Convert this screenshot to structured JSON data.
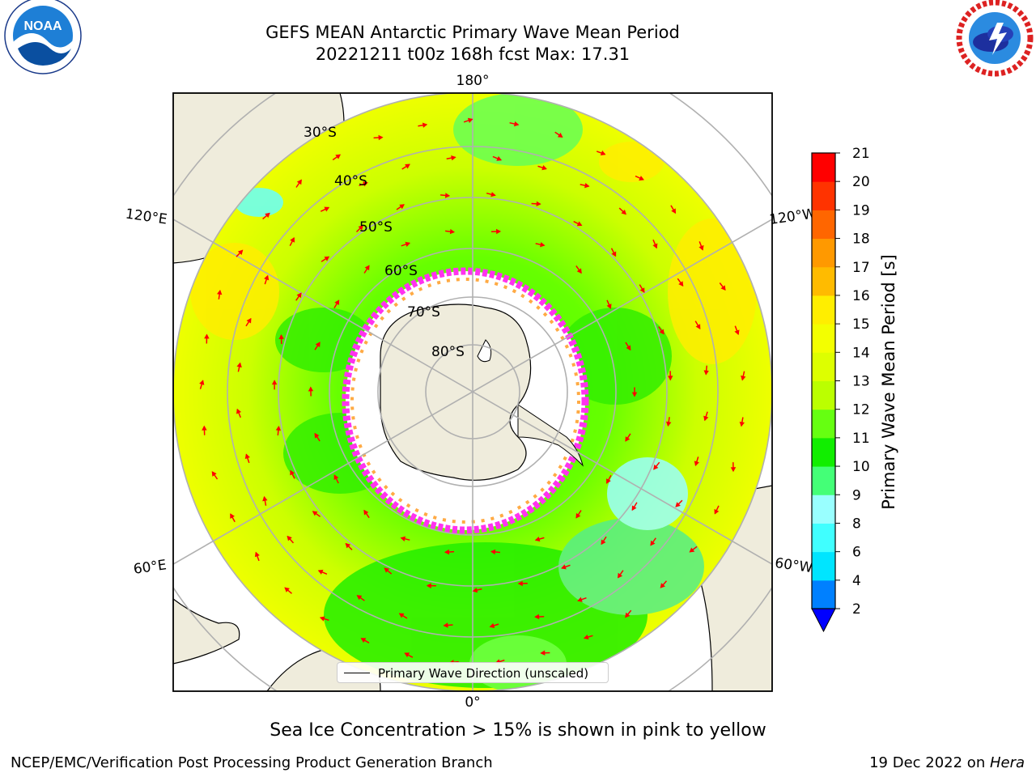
{
  "header": {
    "title_line1": "GEFS MEAN Antarctic Primary Wave Mean Period",
    "title_line2": "20221211 t00z 168h fcst   Max: 17.31"
  },
  "logos": {
    "left": "noaa-logo",
    "right": "nws-logo",
    "left_text": "NOAA"
  },
  "map": {
    "projection": "south-polar-stereographic",
    "lon_labels": [
      "180°",
      "120°E",
      "120°W",
      "60°E",
      "60°W",
      "0°"
    ],
    "lat_labels": [
      "30°S",
      "40°S",
      "50°S",
      "60°S",
      "70°S",
      "80°S"
    ],
    "colors": {
      "land": "#efecdc",
      "ocean_yellow": "#eaff00",
      "ocean_green": "#55ff00",
      "ice": "#ffffff",
      "ice_edge": "#ff33ee",
      "arrows": "#ff0000"
    }
  },
  "legend": {
    "entry": "Primary Wave Direction (unscaled)"
  },
  "colorbar": {
    "label": "Primary Wave Mean Period [s]",
    "ticks": [
      "2",
      "4",
      "6",
      "8",
      "9",
      "10",
      "11",
      "12",
      "13",
      "14",
      "15",
      "16",
      "17",
      "18",
      "19",
      "20",
      "21"
    ],
    "colors": [
      "#0080ff",
      "#00e5ff",
      "#40ffff",
      "#99ffff",
      "#44ff77",
      "#11ee00",
      "#66ff11",
      "#bbff00",
      "#ddff00",
      "#f3ff00",
      "#ffee00",
      "#ffbb00",
      "#ff9900",
      "#ff6600",
      "#ff3300",
      "#ff0000"
    ],
    "under_color": "#0000ff"
  },
  "caption": "Sea Ice Concentration > 15% is shown in pink to yellow",
  "footer": {
    "left": "NCEP/EMC/Verification Post Processing Product Generation Branch",
    "right_prefix": "19 Dec 2022 on ",
    "right_host": "Hera"
  }
}
